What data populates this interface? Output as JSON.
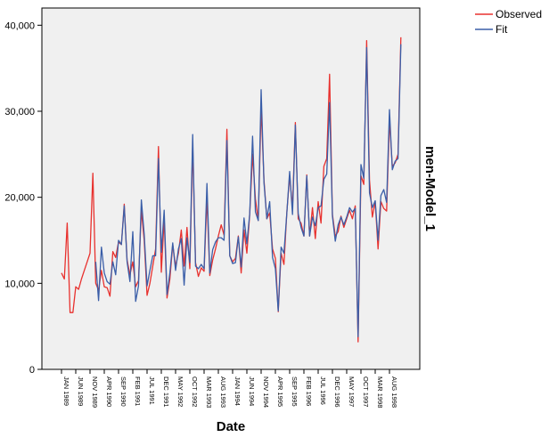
{
  "chart_data": {
    "type": "line",
    "title": "",
    "xlabel": "Date",
    "ylabel": "men-Model_1",
    "ylim": [
      0,
      42000
    ],
    "yticks": [
      0,
      10000,
      20000,
      30000,
      40000
    ],
    "ytick_labels": [
      "0",
      "10,000",
      "20,000",
      "30,000",
      "40,000"
    ],
    "xtick_labels": [
      "JAN 1989",
      "JUN 1989",
      "NOV 1989",
      "APR 1990",
      "SEP 1990",
      "FEB 1991",
      "JUL 1991",
      "DEC 1991",
      "MAY 1992",
      "OCT 1992",
      "MAR 1993",
      "AUG 1993",
      "JAN 1994",
      "JUN 1994",
      "NOV 1994",
      "APR 1995",
      "SEP 1995",
      "FEB 1996",
      "JUL 1996",
      "DEC 1996",
      "MAY 1997",
      "OCT 1997",
      "MAR 1998",
      "AUG 1998"
    ],
    "x": [
      "1989-01",
      "1989-02",
      "1989-03",
      "1989-04",
      "1989-05",
      "1989-06",
      "1989-07",
      "1989-08",
      "1989-09",
      "1989-10",
      "1989-11",
      "1989-12",
      "1990-01",
      "1990-02",
      "1990-03",
      "1990-04",
      "1990-05",
      "1990-06",
      "1990-07",
      "1990-08",
      "1990-09",
      "1990-10",
      "1990-11",
      "1990-12",
      "1991-01",
      "1991-02",
      "1991-03",
      "1991-04",
      "1991-05",
      "1991-06",
      "1991-07",
      "1991-08",
      "1991-09",
      "1991-10",
      "1991-11",
      "1991-12",
      "1992-01",
      "1992-02",
      "1992-03",
      "1992-04",
      "1992-05",
      "1992-06",
      "1992-07",
      "1992-08",
      "1992-09",
      "1992-10",
      "1992-11",
      "1992-12",
      "1993-01",
      "1993-02",
      "1993-03",
      "1993-04",
      "1993-05",
      "1993-06",
      "1993-07",
      "1993-08",
      "1993-09",
      "1993-10",
      "1993-11",
      "1993-12",
      "1994-01",
      "1994-02",
      "1994-03",
      "1994-04",
      "1994-05",
      "1994-06",
      "1994-07",
      "1994-08",
      "1994-09",
      "1994-10",
      "1994-11",
      "1994-12",
      "1995-01",
      "1995-02",
      "1995-03",
      "1995-04",
      "1995-05",
      "1995-06",
      "1995-07",
      "1995-08",
      "1995-09",
      "1995-10",
      "1995-11",
      "1995-12",
      "1996-01",
      "1996-02",
      "1996-03",
      "1996-04",
      "1996-05",
      "1996-06",
      "1996-07",
      "1996-08",
      "1996-09",
      "1996-10",
      "1996-11",
      "1996-12",
      "1997-01",
      "1997-02",
      "1997-03",
      "1997-04",
      "1997-05",
      "1997-06",
      "1997-07",
      "1997-08",
      "1997-09",
      "1997-10",
      "1997-11",
      "1997-12",
      "1998-01",
      "1998-02",
      "1998-03",
      "1998-04",
      "1998-05",
      "1998-06",
      "1998-07",
      "1998-08",
      "1998-09",
      "1998-10",
      "1998-11",
      "1998-12"
    ],
    "legend_position": "top-right",
    "series": [
      {
        "name": "Observed",
        "color": "#e8312e",
        "values": [
          11200,
          10500,
          17000,
          6600,
          6600,
          9600,
          9300,
          10500,
          11500,
          12500,
          13500,
          22800,
          10000,
          9200,
          11500,
          9600,
          9500,
          8500,
          13700,
          13000,
          14800,
          14500,
          19200,
          12700,
          11000,
          12500,
          9600,
          10300,
          18500,
          15000,
          8600,
          10000,
          12000,
          14000,
          25900,
          11300,
          17500,
          8300,
          10500,
          14500,
          12000,
          13500,
          16200,
          12000,
          16500,
          11700,
          26000,
          12400,
          10800,
          11800,
          11400,
          20000,
          10900,
          12700,
          14000,
          15500,
          16800,
          15600,
          27900,
          13200,
          12500,
          12900,
          15500,
          11200,
          16200,
          13500,
          18000,
          25000,
          19800,
          17300,
          30500,
          22000,
          17500,
          18200,
          14000,
          12900,
          6700,
          13500,
          12200,
          18200,
          22500,
          18800,
          28700,
          17500,
          17000,
          15500,
          22600,
          15500,
          18800,
          15200,
          19500,
          17000,
          23600,
          24500,
          34300,
          18000,
          15500,
          16000,
          17800,
          16500,
          17500,
          18500,
          17500,
          19000,
          3200,
          22500,
          21500,
          38200,
          22000,
          17700,
          19500,
          14000,
          19500,
          18700,
          18400,
          29000,
          23600,
          24000,
          25000,
          38600
        ]
      },
      {
        "name": "Fit",
        "color": "#3a5ea8",
        "values": [
          null,
          null,
          null,
          null,
          null,
          null,
          null,
          null,
          null,
          null,
          null,
          null,
          12500,
          8000,
          14200,
          11200,
          10200,
          9900,
          12500,
          11000,
          15000,
          14500,
          19000,
          12500,
          10200,
          16000,
          7900,
          9700,
          19700,
          15700,
          9700,
          11500,
          13200,
          13200,
          24500,
          13600,
          18500,
          8700,
          11200,
          14700,
          11500,
          14000,
          15200,
          9800,
          15300,
          12400,
          27300,
          12000,
          11700,
          12200,
          11700,
          21600,
          11200,
          13900,
          14800,
          15300,
          15300,
          15000,
          26600,
          13200,
          12300,
          12400,
          15400,
          11900,
          17600,
          14600,
          18100,
          27100,
          18300,
          17300,
          32500,
          21700,
          17500,
          19500,
          13000,
          11700,
          6800,
          14200,
          13500,
          18100,
          23000,
          18000,
          28400,
          18100,
          16500,
          15500,
          22500,
          15500,
          17700,
          16700,
          18800,
          19000,
          22100,
          22700,
          31000,
          17800,
          14900,
          16800,
          17700,
          16800,
          17700,
          18800,
          18300,
          18700,
          3800,
          23800,
          22200,
          37400,
          20500,
          18800,
          19600,
          15000,
          20200,
          20900,
          19400,
          30200,
          23200,
          24200,
          24500,
          37800
        ]
      }
    ]
  }
}
